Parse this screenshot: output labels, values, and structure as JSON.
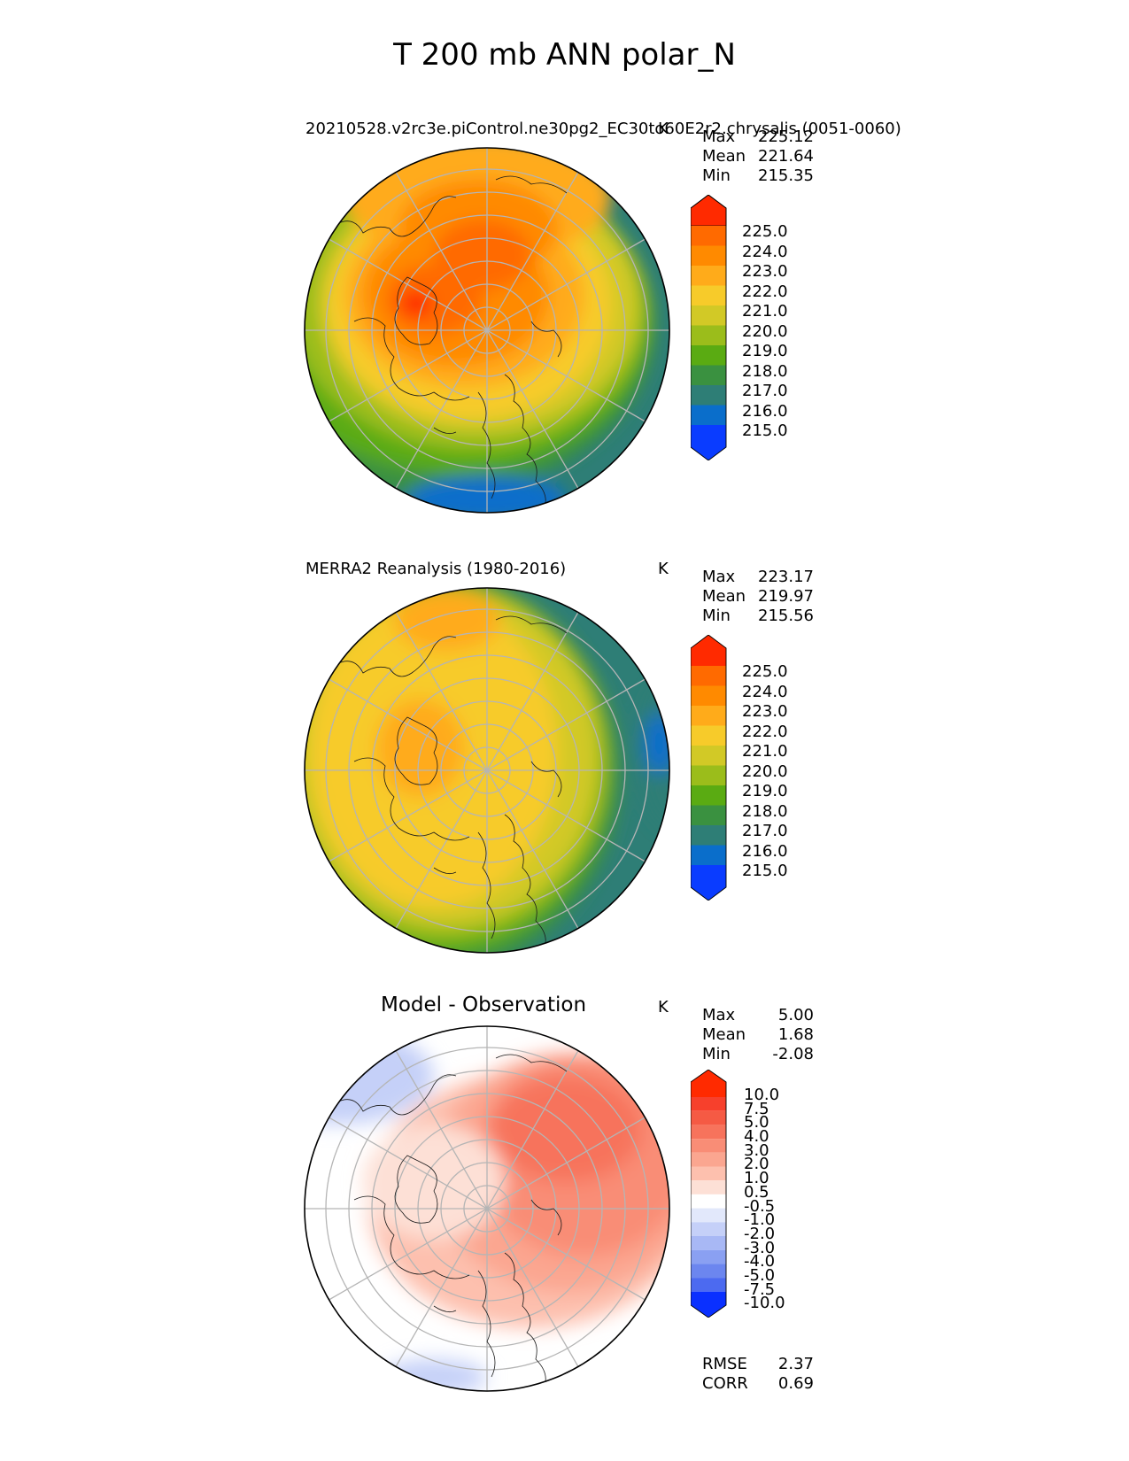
{
  "figure_title": "T 200 mb ANN polar_N",
  "panels": [
    {
      "title": "20210528.v2rc3e.piControl.ne30pg2_EC30to60E2r2.chrysalis (0051-0060)",
      "units": "K",
      "stats": [
        {
          "label": "Max",
          "value": "225.12"
        },
        {
          "label": "Mean",
          "value": "221.64"
        },
        {
          "label": "Min",
          "value": "215.35"
        }
      ],
      "colorbar_ticks": [
        "225.0",
        "224.0",
        "223.0",
        "222.0",
        "221.0",
        "220.0",
        "219.0",
        "218.0",
        "217.0",
        "216.0",
        "215.0"
      ],
      "colorbar_colors": [
        "#ff2a00",
        "#ff6a00",
        "#ff8a00",
        "#ffab1a",
        "#f7cb2a",
        "#d2c926",
        "#9bbd1b",
        "#5aab12",
        "#3a9140",
        "#2e7e76",
        "#0a6ecb",
        "#0a3cff"
      ]
    },
    {
      "title": "MERRA2 Reanalysis (1980-2016)",
      "units": "K",
      "stats": [
        {
          "label": "Max",
          "value": "223.17"
        },
        {
          "label": "Mean",
          "value": "219.97"
        },
        {
          "label": "Min",
          "value": "215.56"
        }
      ],
      "colorbar_ticks": [
        "225.0",
        "224.0",
        "223.0",
        "222.0",
        "221.0",
        "220.0",
        "219.0",
        "218.0",
        "217.0",
        "216.0",
        "215.0"
      ],
      "colorbar_colors": [
        "#ff2a00",
        "#ff6a00",
        "#ff8a00",
        "#ffab1a",
        "#f7cb2a",
        "#d2c926",
        "#9bbd1b",
        "#5aab12",
        "#3a9140",
        "#2e7e76",
        "#0a6ecb",
        "#0a3cff"
      ]
    },
    {
      "title": "Model - Observation",
      "units": "K",
      "stats": [
        {
          "label": "Max",
          "value": "5.00"
        },
        {
          "label": "Mean",
          "value": "1.68"
        },
        {
          "label": "Min",
          "value": "-2.08"
        }
      ],
      "colorbar_ticks": [
        "10.0",
        "7.5",
        "5.0",
        "4.0",
        "3.0",
        "2.0",
        "1.0",
        "0.5",
        "-0.5",
        "-1.0",
        "-2.0",
        "-3.0",
        "-4.0",
        "-5.0",
        "-7.5",
        "-10.0"
      ],
      "colorbar_colors": [
        "#ff2a00",
        "#f7402c",
        "#f55a44",
        "#f7735c",
        "#f98d76",
        "#fba690",
        "#fdc0ae",
        "#fde0d6",
        "#ffffff",
        "#e2e8fb",
        "#c5d0f8",
        "#a8b8f5",
        "#8aa0f2",
        "#6c86ef",
        "#4c6af0",
        "#2c4ef3",
        "#0a30ff"
      ],
      "metrics": [
        {
          "label": "RMSE",
          "value": "2.37"
        },
        {
          "label": "CORR",
          "value": "0.69"
        }
      ]
    }
  ]
}
